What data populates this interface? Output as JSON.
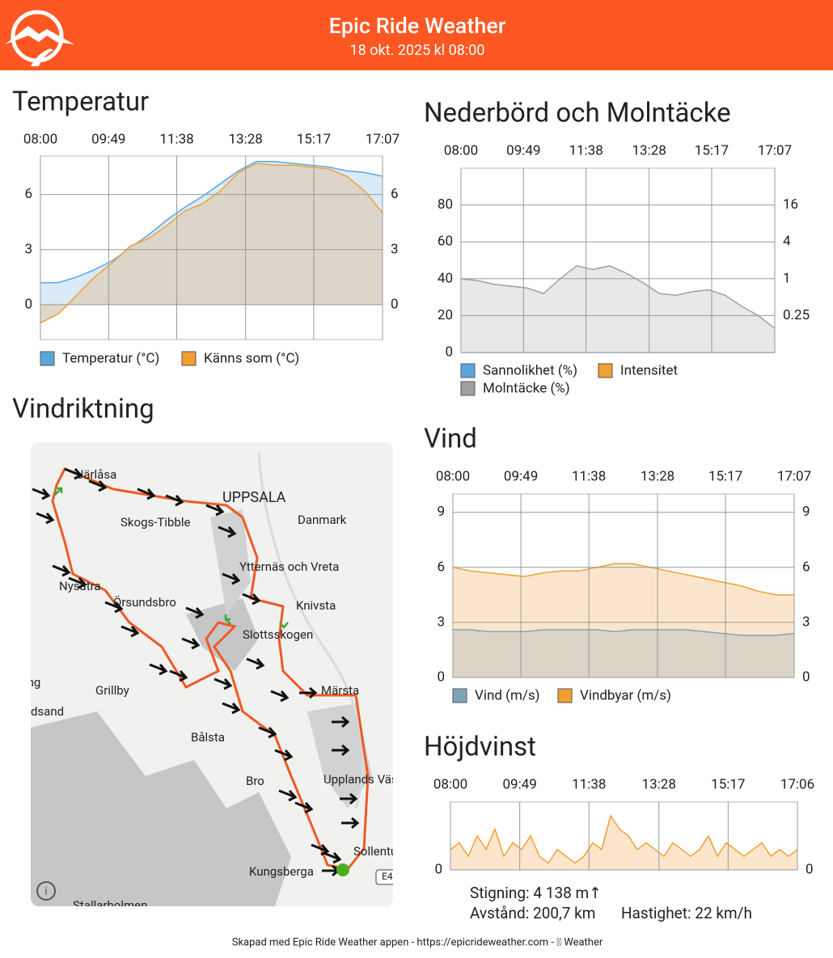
{
  "header": {
    "title": "Epic Ride Weather",
    "subtitle": "18 okt. 2025 kl 08:00"
  },
  "map": {
    "title": "Vindriktning",
    "places": [
      "Järlåsa",
      "UPPSALA",
      "Skogs-Tibble",
      "Danmark",
      "Ytternäs och Vreta",
      "Nysätra",
      "Örsundsbro",
      "Knivsta",
      "Slottsskogen",
      "Märsta",
      "Grillby",
      "ing",
      "edsand",
      "Bålsta",
      "Bro",
      "Upplands Väsby",
      "Sollentuna",
      "Kungsberga",
      "E4",
      "Stallarholmen"
    ]
  },
  "stats": {
    "climb": "Stigning: 4 138 m↑",
    "distance": "Avstånd: 200,7 km",
    "speed": "Hastighet: 22 km/h"
  },
  "footer": "Skapad med Epic Ride Weather appen - https://epicrideweather.com -  Weather",
  "chart_data": [
    {
      "type": "area",
      "title": "Temperatur",
      "x": [
        8,
        8.48,
        8.96,
        9.44,
        9.92,
        10.4,
        10.88,
        11.36,
        11.84,
        12.32,
        12.8,
        13.28,
        13.76,
        14.24,
        14.72,
        15.2,
        15.68,
        16.16,
        16.64,
        17.12
      ],
      "xlim": [
        8,
        17.117
      ],
      "xticks": [
        {
          "value": 8,
          "label": "08:00"
        },
        {
          "value": 9.817,
          "label": "09:49"
        },
        {
          "value": 11.633,
          "label": "11:38"
        },
        {
          "value": 13.467,
          "label": "13:28"
        },
        {
          "value": 15.283,
          "label": "15:17"
        },
        {
          "value": 17.117,
          "label": "17:07"
        }
      ],
      "ylim": [
        -1.9,
        8.1
      ],
      "yticks": [
        0,
        3,
        6
      ],
      "grid": true,
      "series": [
        {
          "name": "Temperatur (°C)",
          "color": "#5aa7de",
          "fill": "#d5e8f7",
          "values": [
            1.2,
            1.2,
            1.5,
            1.9,
            2.4,
            3.1,
            3.8,
            4.6,
            5.3,
            5.9,
            6.6,
            7.3,
            7.8,
            7.8,
            7.7,
            7.6,
            7.5,
            7.3,
            7.2,
            7.0
          ]
        },
        {
          "name": "Känns som (°C)",
          "color": "#f0a030",
          "fill": "#ddd3c4",
          "values": [
            -1.0,
            -0.5,
            0.5,
            1.5,
            2.3,
            3.2,
            3.6,
            4.3,
            5.1,
            5.5,
            6.2,
            7.2,
            7.7,
            7.6,
            7.6,
            7.5,
            7.4,
            7.0,
            6.2,
            5.0
          ]
        }
      ]
    },
    {
      "type": "area",
      "title": "Nederbörd och Molntäcke",
      "x": [
        8,
        8.48,
        8.96,
        9.44,
        9.92,
        10.4,
        10.88,
        11.36,
        11.84,
        12.32,
        12.8,
        13.28,
        13.76,
        14.24,
        14.72,
        15.2,
        15.68,
        16.16,
        16.64,
        17.12
      ],
      "xlim": [
        8,
        17.117
      ],
      "xticks": [
        {
          "value": 8,
          "label": "08:00"
        },
        {
          "value": 9.817,
          "label": "09:49"
        },
        {
          "value": 11.633,
          "label": "11:38"
        },
        {
          "value": 13.467,
          "label": "13:28"
        },
        {
          "value": 15.283,
          "label": "15:17"
        },
        {
          "value": 17.117,
          "label": "17:07"
        }
      ],
      "ylim": [
        0,
        100
      ],
      "yticks": [
        0,
        20,
        40,
        60,
        80
      ],
      "y2lim": [
        0.0625,
        64
      ],
      "y2ticks": [
        0.25,
        1,
        4,
        16
      ],
      "y2log": true,
      "grid": true,
      "series": [
        {
          "name": "Sannolikhet (%)",
          "color": "#5aa7de",
          "fill": "#d5e8f7",
          "values": [
            0,
            0,
            0,
            0,
            0,
            0,
            0,
            0,
            0,
            0,
            0,
            0,
            0,
            0,
            0,
            0,
            0,
            0,
            0,
            0
          ]
        },
        {
          "name": "Intensitet",
          "color": "#f0a030",
          "fill": "#fbe3c4",
          "axis": "y2",
          "values": [
            null,
            null,
            null,
            null,
            null,
            null,
            null,
            null,
            null,
            null,
            null,
            null,
            null,
            null,
            null,
            null,
            null,
            null,
            null,
            null
          ]
        },
        {
          "name": "Molntäcke (%)",
          "color": "#a0a0a0",
          "fill": "#e6e6e6",
          "values": [
            40,
            39,
            37,
            36,
            35,
            32,
            40,
            47,
            45,
            47,
            43,
            38,
            32,
            31,
            33,
            34,
            31,
            25,
            20,
            13
          ]
        }
      ]
    },
    {
      "type": "area",
      "title": "Vind",
      "x": [
        8,
        8.48,
        8.96,
        9.44,
        9.92,
        10.4,
        10.88,
        11.36,
        11.84,
        12.32,
        12.8,
        13.28,
        13.76,
        14.24,
        14.72,
        15.2,
        15.68,
        16.16,
        16.64,
        17.12
      ],
      "xlim": [
        8,
        17.117
      ],
      "xticks": [
        {
          "value": 8,
          "label": "08:00"
        },
        {
          "value": 9.817,
          "label": "09:49"
        },
        {
          "value": 11.633,
          "label": "11:38"
        },
        {
          "value": 13.467,
          "label": "13:28"
        },
        {
          "value": 15.283,
          "label": "15:17"
        },
        {
          "value": 17.117,
          "label": "17:07"
        }
      ],
      "ylim": [
        0,
        10
      ],
      "yticks": [
        0,
        3,
        6,
        9
      ],
      "grid": true,
      "series": [
        {
          "name": "Vindbyar (m/s)",
          "color": "#f0a030",
          "fill": "#fbe3c8",
          "values": [
            6.0,
            5.8,
            5.7,
            5.6,
            5.5,
            5.7,
            5.8,
            5.8,
            6.0,
            6.2,
            6.2,
            6.0,
            5.8,
            5.6,
            5.4,
            5.2,
            5.0,
            4.7,
            4.5,
            4.5
          ]
        },
        {
          "name": "Vind (m/s)",
          "color": "#7fa4b8",
          "fill": "#d8d1c6",
          "values": [
            2.6,
            2.6,
            2.5,
            2.5,
            2.5,
            2.6,
            2.6,
            2.6,
            2.6,
            2.5,
            2.6,
            2.6,
            2.6,
            2.6,
            2.5,
            2.4,
            2.3,
            2.3,
            2.3,
            2.4
          ]
        }
      ]
    },
    {
      "type": "area",
      "title": "Höjdvinst",
      "x": [
        8,
        8.233,
        8.467,
        8.7,
        8.933,
        9.167,
        9.4,
        9.633,
        9.867,
        10.1,
        10.333,
        10.567,
        10.8,
        11.033,
        11.267,
        11.5,
        11.733,
        11.967,
        12.2,
        12.433,
        12.667,
        12.9,
        13.133,
        13.367,
        13.6,
        13.833,
        14.067,
        14.3,
        14.533,
        14.767,
        15,
        15.233,
        15.467,
        15.7,
        15.933,
        16.167,
        16.4,
        16.633,
        16.867,
        17.1
      ],
      "xlim": [
        8,
        17.1
      ],
      "xticks": [
        {
          "value": 8,
          "label": "08:00"
        },
        {
          "value": 9.817,
          "label": "09:49"
        },
        {
          "value": 11.633,
          "label": "11:38"
        },
        {
          "value": 13.467,
          "label": "13:28"
        },
        {
          "value": 15.283,
          "label": "15:17"
        },
        {
          "value": 17.1,
          "label": "17:06"
        }
      ],
      "ylim": [
        0,
        10
      ],
      "yticks": [
        0
      ],
      "grid": true,
      "series": [
        {
          "color": "#f0a030",
          "fill": "#fbe3c8",
          "values": [
            3,
            4,
            2,
            5,
            3,
            6,
            2,
            4,
            3,
            5,
            2,
            1,
            3,
            2,
            1,
            2,
            4,
            3,
            8,
            6,
            5,
            3,
            4,
            3,
            2,
            4,
            3,
            2,
            3,
            5,
            2,
            4,
            3,
            2,
            3,
            4,
            2,
            3,
            2,
            3
          ]
        }
      ]
    }
  ]
}
